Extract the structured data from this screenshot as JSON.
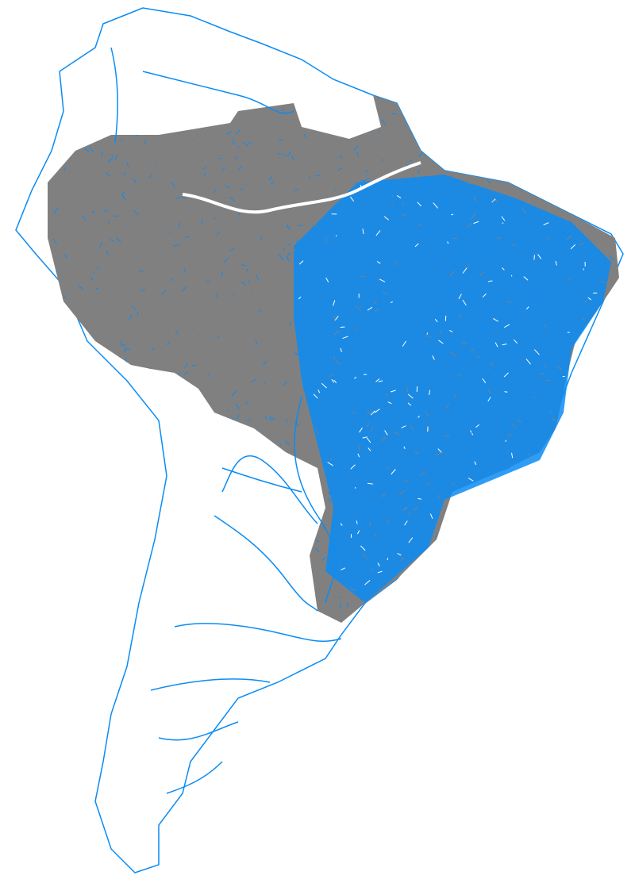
{
  "map": {
    "colors": {
      "background": "#ffffff",
      "river_blue": "#0a8cf5",
      "basin_grey": "#808080"
    }
  }
}
